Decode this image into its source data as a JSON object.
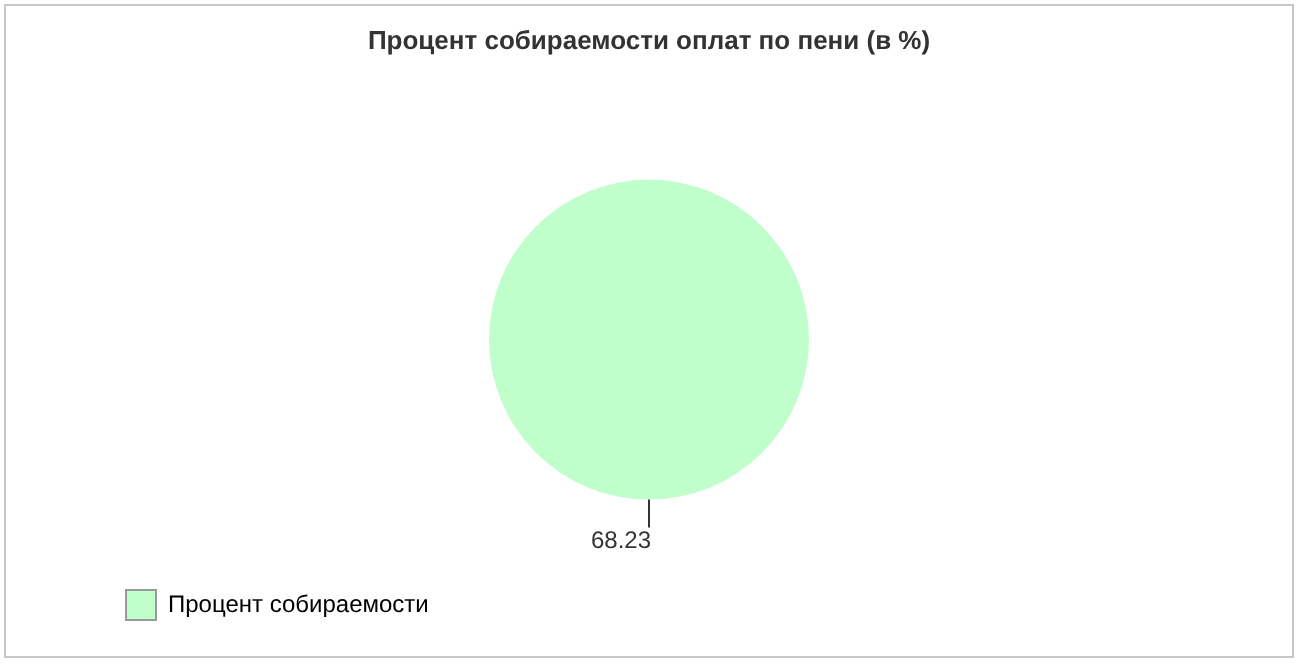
{
  "chart_data": {
    "type": "pie",
    "title": "Процент собираемости оплат по пени (в %)",
    "categories": [
      "Процент собираемости"
    ],
    "values": [
      68.23
    ],
    "colors": [
      "#c0ffcc"
    ],
    "data_labels": true,
    "legend": "bottom left"
  }
}
